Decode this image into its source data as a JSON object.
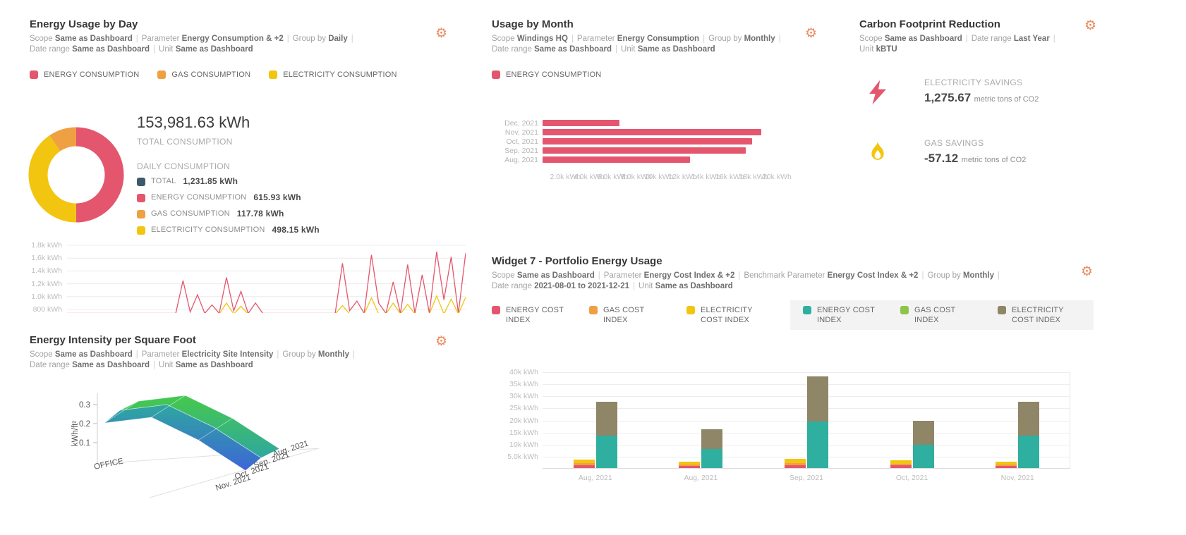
{
  "icons": {
    "gear": "⚙"
  },
  "colors": {
    "energy": "#E4566E",
    "gas": "#EFA043",
    "electricity": "#F2C511",
    "total": "#3D5A6B",
    "benchmark_energy": "#2FAF9F",
    "benchmark_gas": "#8DC549",
    "benchmark_electricity": "#8F8567",
    "gear": "#EC8B5E"
  },
  "widgets": {
    "usage_by_day": {
      "title": "Energy Usage by Day",
      "meta": [
        {
          "pairs": [
            [
              "Scope",
              "Same as Dashboard"
            ],
            [
              "Parameter",
              "Energy Consumption & +2"
            ],
            [
              "Group by",
              "Daily"
            ]
          ],
          "trailing": true
        },
        {
          "pairs": [
            [
              "Date range",
              "Same as Dashboard"
            ],
            [
              "Unit",
              "Same as Dashboard"
            ]
          ],
          "trailing": false
        }
      ],
      "legend": [
        {
          "label": "ENERGY CONSUMPTION",
          "color": "#E4566E"
        },
        {
          "label": "GAS CONSUMPTION",
          "color": "#EFA043"
        },
        {
          "label": "ELECTRICITY CONSUMPTION",
          "color": "#F2C511"
        }
      ],
      "total_value": "153,981.63 kWh",
      "total_label": "TOTAL CONSUMPTION",
      "daily_label": "DAILY CONSUMPTION",
      "daily_items": [
        {
          "label": "TOTAL",
          "value": "1,231.85 kWh",
          "color": "#3D5A6B"
        },
        {
          "label": "ENERGY CONSUMPTION",
          "value": "615.93 kWh",
          "color": "#E4566E"
        },
        {
          "label": "GAS CONSUMPTION",
          "value": "117.78 kWh",
          "color": "#EFA043"
        },
        {
          "label": "ELECTRICITY CONSUMPTION",
          "value": "498.15 kWh",
          "color": "#F2C511"
        }
      ]
    },
    "intensity": {
      "title": "Energy Intensity per Square Foot",
      "meta": [
        {
          "pairs": [
            [
              "Scope",
              "Same as Dashboard"
            ],
            [
              "Parameter",
              "Electricity Site Intensity"
            ],
            [
              "Group by",
              "Monthly"
            ]
          ],
          "trailing": true
        },
        {
          "pairs": [
            [
              "Date range",
              "Same as Dashboard"
            ],
            [
              "Unit",
              "Same as Dashboard"
            ]
          ],
          "trailing": false
        }
      ]
    },
    "usage_by_month": {
      "title": "Usage by Month",
      "meta": [
        {
          "pairs": [
            [
              "Scope",
              "Windings HQ"
            ],
            [
              "Parameter",
              "Energy Consumption"
            ],
            [
              "Group by",
              "Monthly"
            ]
          ],
          "trailing": true
        },
        {
          "pairs": [
            [
              "Date range",
              "Same as Dashboard"
            ],
            [
              "Unit",
              "Same as Dashboard"
            ]
          ],
          "trailing": false
        }
      ],
      "legend": [
        {
          "label": "ENERGY CONSUMPTION",
          "color": "#E4566E"
        }
      ]
    },
    "carbon": {
      "title": "Carbon Footprint Reduction",
      "meta": [
        {
          "pairs": [
            [
              "Scope",
              "Same as Dashboard"
            ],
            [
              "Date range",
              "Last Year"
            ]
          ],
          "trailing": true
        },
        {
          "pairs": [
            [
              "Unit",
              "kBTU"
            ]
          ],
          "trailing": false
        }
      ],
      "stats": [
        {
          "icon": "lightning-icon",
          "label": "ELECTRICITY SAVINGS",
          "value": "1,275.67",
          "unit": "metric tons of CO2"
        },
        {
          "icon": "flame-icon",
          "label": "GAS SAVINGS",
          "value": "-57.12",
          "unit": "metric tons of CO2"
        }
      ]
    },
    "portfolio": {
      "title": "Widget 7 - Portfolio Energy Usage",
      "meta": [
        {
          "pairs": [
            [
              "Scope",
              "Same as Dashboard"
            ],
            [
              "Parameter",
              "Energy Cost Index & +2"
            ],
            [
              "Benchmark Parameter",
              "Energy Cost Index & +2"
            ],
            [
              "Group by",
              "Monthly"
            ]
          ],
          "trailing": true
        },
        {
          "pairs": [
            [
              "Date range",
              "2021-08-01 to 2021-12-21"
            ],
            [
              "Unit",
              "Same as Dashboard"
            ]
          ],
          "trailing": false
        }
      ],
      "legend_actual": [
        {
          "label": "ENERGY COST INDEX",
          "color": "#E4566E"
        },
        {
          "label": "GAS COST INDEX",
          "color": "#EFA043"
        },
        {
          "label": "ELECTRICITY COST INDEX",
          "color": "#F2C511"
        }
      ],
      "legend_benchmark": [
        {
          "label": "ENERGY COST INDEX",
          "color": "#2FAF9F"
        },
        {
          "label": "GAS COST INDEX",
          "color": "#8DC549"
        },
        {
          "label": "ELECTRICITY COST INDEX",
          "color": "#8F8567"
        }
      ]
    }
  },
  "chart_data": [
    {
      "id": "daily-donut",
      "type": "pie",
      "title": "Daily consumption breakdown",
      "unit": "kWh",
      "total": 1231.85,
      "slices": [
        {
          "label": "ENERGY CONSUMPTION",
          "value": 615.93,
          "color": "#E4566E"
        },
        {
          "label": "ELECTRICITY CONSUMPTION",
          "value": 498.15,
          "color": "#F2C511"
        },
        {
          "label": "GAS CONSUMPTION",
          "value": 117.78,
          "color": "#EFA043"
        }
      ]
    },
    {
      "id": "daily-line",
      "type": "line",
      "ylabel": "kWh",
      "ylim": [
        800,
        1800
      ],
      "yticks": [
        "1.8k kWh",
        "1.6k kWh",
        "1.4k kWh",
        "1.2k kWh",
        "1.0k kWh",
        "800 kWh"
      ],
      "grid": true,
      "series": [
        {
          "name": "ENERGY CONSUMPTION",
          "color": "#E4566E",
          "values": [
            740,
            740,
            740,
            740,
            740,
            740,
            740,
            740,
            740,
            740,
            740,
            740,
            740,
            740,
            740,
            740,
            1250,
            760,
            1030,
            740,
            870,
            740,
            1300,
            780,
            1080,
            740,
            900,
            740,
            740,
            740,
            740,
            740,
            740,
            740,
            740,
            740,
            740,
            740,
            1520,
            780,
            930,
            740,
            1650,
            900,
            740,
            1230,
            740,
            1500,
            740,
            1340,
            740,
            1700,
            950,
            1620,
            740,
            1680
          ]
        },
        {
          "name": "ELECTRICITY CONSUMPTION",
          "color": "#F2C511",
          "values": [
            730,
            730,
            730,
            730,
            730,
            730,
            730,
            730,
            730,
            730,
            730,
            730,
            730,
            730,
            730,
            730,
            730,
            730,
            730,
            730,
            730,
            730,
            900,
            730,
            850,
            730,
            730,
            730,
            730,
            730,
            730,
            730,
            730,
            730,
            730,
            730,
            730,
            730,
            860,
            730,
            730,
            730,
            980,
            730,
            730,
            900,
            730,
            880,
            730,
            730,
            730,
            1010,
            730,
            960,
            730,
            990
          ]
        }
      ]
    },
    {
      "id": "usage-by-month",
      "type": "bar",
      "orientation": "horizontal",
      "categories": [
        "Dec, 2021",
        "Nov, 2021",
        "Oct, 2021",
        "Sep, 2021",
        "Aug, 2021"
      ],
      "values": [
        6500,
        18500,
        17700,
        17200,
        12500
      ],
      "color": "#E4566E",
      "xlim": [
        0,
        20000
      ],
      "xticks": [
        "2.0k kWh",
        "4.0k kWh",
        "6.0k kWh",
        "8.0k kWh",
        "10k kWh",
        "12k kWh",
        "14k kWh",
        "16k kWh",
        "18k kWh",
        "20k kWh"
      ],
      "unit": "kWh"
    },
    {
      "id": "intensity-surface",
      "type": "heatmap",
      "subtype": "3d-surface",
      "zlabel": "kWh/ft²",
      "zticks": [
        "0.3",
        "0.2",
        "0.1"
      ],
      "x_categories": [
        "Aug. 2021",
        "Sep. 2021",
        "Oct. 2021",
        "Nov. 2021"
      ],
      "y_categories": [
        "OFFICE"
      ],
      "values": [
        [
          0.27,
          0.3,
          0.18,
          0.02
        ]
      ]
    },
    {
      "id": "portfolio-stacked",
      "type": "bar",
      "stacked": true,
      "categories": [
        "Aug, 2021",
        "Aug, 2021",
        "Sep, 2021",
        "Oct, 2021",
        "Nov, 2021"
      ],
      "ylim": [
        0,
        40000
      ],
      "yticks": [
        "5.0k kWh",
        "10k kWh",
        "15k kWh",
        "20k kWh",
        "25k kWh",
        "30k kWh",
        "35k kWh",
        "40k kWh"
      ],
      "unit": "kWh",
      "groups": [
        {
          "name": "actual",
          "series": [
            {
              "name": "ENERGY COST INDEX",
              "color": "#E4566E",
              "values": [
                1300,
                1000,
                1300,
                1200,
                900
              ]
            },
            {
              "name": "GAS COST INDEX",
              "color": "#EFA043",
              "values": [
                800,
                600,
                800,
                700,
                600
              ]
            },
            {
              "name": "ELECTRICITY COST INDEX",
              "color": "#F2C511",
              "values": [
                1500,
                1100,
                1600,
                1300,
                1100
              ]
            }
          ]
        },
        {
          "name": "benchmark",
          "series": [
            {
              "name": "ENERGY COST INDEX",
              "color": "#2FAF9F",
              "values": [
                13500,
                8000,
                19300,
                9600,
                13400
              ]
            },
            {
              "name": "GAS COST INDEX",
              "color": "#8DC549",
              "values": [
                0,
                0,
                0,
                0,
                0
              ]
            },
            {
              "name": "ELECTRICITY COST INDEX",
              "color": "#8F8567",
              "values": [
                14000,
                8200,
                18600,
                10000,
                14200
              ]
            }
          ]
        }
      ]
    }
  ]
}
